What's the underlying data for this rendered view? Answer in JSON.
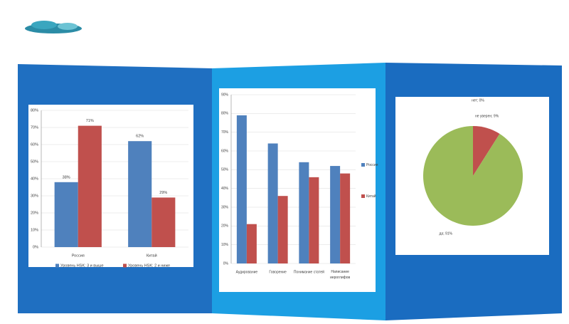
{
  "chart_data": [
    {
      "type": "bar",
      "categories": [
        "Россия",
        "Китай"
      ],
      "series": [
        {
          "name": "Уровень HSK: 3 и выше",
          "color": "#4f81bd",
          "values": [
            38,
            62
          ],
          "value_labels": [
            "38%",
            "62%"
          ]
        },
        {
          "name": "Уровень HSK: 2 и ниже",
          "color": "#c0504d",
          "values": [
            71,
            29
          ],
          "value_labels": [
            "71%",
            "29%"
          ]
        }
      ],
      "ylim": [
        0,
        80
      ],
      "yticks": [
        {
          "value": 0,
          "label": "0%"
        },
        {
          "value": 10,
          "label": "10%"
        },
        {
          "value": 20,
          "label": "20%"
        },
        {
          "value": 30,
          "label": "30%"
        },
        {
          "value": 40,
          "label": "40%"
        },
        {
          "value": 50,
          "label": "50%"
        },
        {
          "value": 60,
          "label": "60%"
        },
        {
          "value": 70,
          "label": "70%"
        },
        {
          "value": 80,
          "label": "80%"
        }
      ],
      "legend": "bottom"
    },
    {
      "type": "bar",
      "categories": [
        "Аудирование",
        "Говорение",
        "Понимание статей",
        "Написание иероглифов"
      ],
      "series": [
        {
          "name": "Россия",
          "color": "#4f81bd",
          "values": [
            79,
            64,
            54,
            52
          ]
        },
        {
          "name": "Китай",
          "color": "#c0504d",
          "values": [
            21,
            36,
            46,
            48
          ]
        }
      ],
      "ylim": [
        0,
        90
      ],
      "yticks": [
        {
          "value": 0,
          "label": "0%"
        },
        {
          "value": 10,
          "label": "10%"
        },
        {
          "value": 20,
          "label": "20%"
        },
        {
          "value": 30,
          "label": "30%"
        },
        {
          "value": 40,
          "label": "40%"
        },
        {
          "value": 50,
          "label": "50%"
        },
        {
          "value": 60,
          "label": "60%"
        },
        {
          "value": 70,
          "label": "70%"
        },
        {
          "value": 80,
          "label": "80%"
        },
        {
          "value": 90,
          "label": "90%"
        }
      ],
      "legend": "right"
    },
    {
      "type": "pie",
      "values": [
        0,
        9,
        91
      ],
      "value_labels": [
        "нет; 0%",
        "не уверен; 9%",
        "да; 91%"
      ],
      "colors": [
        "#4f81bd",
        "#c0504d",
        "#9bbb59"
      ]
    }
  ]
}
